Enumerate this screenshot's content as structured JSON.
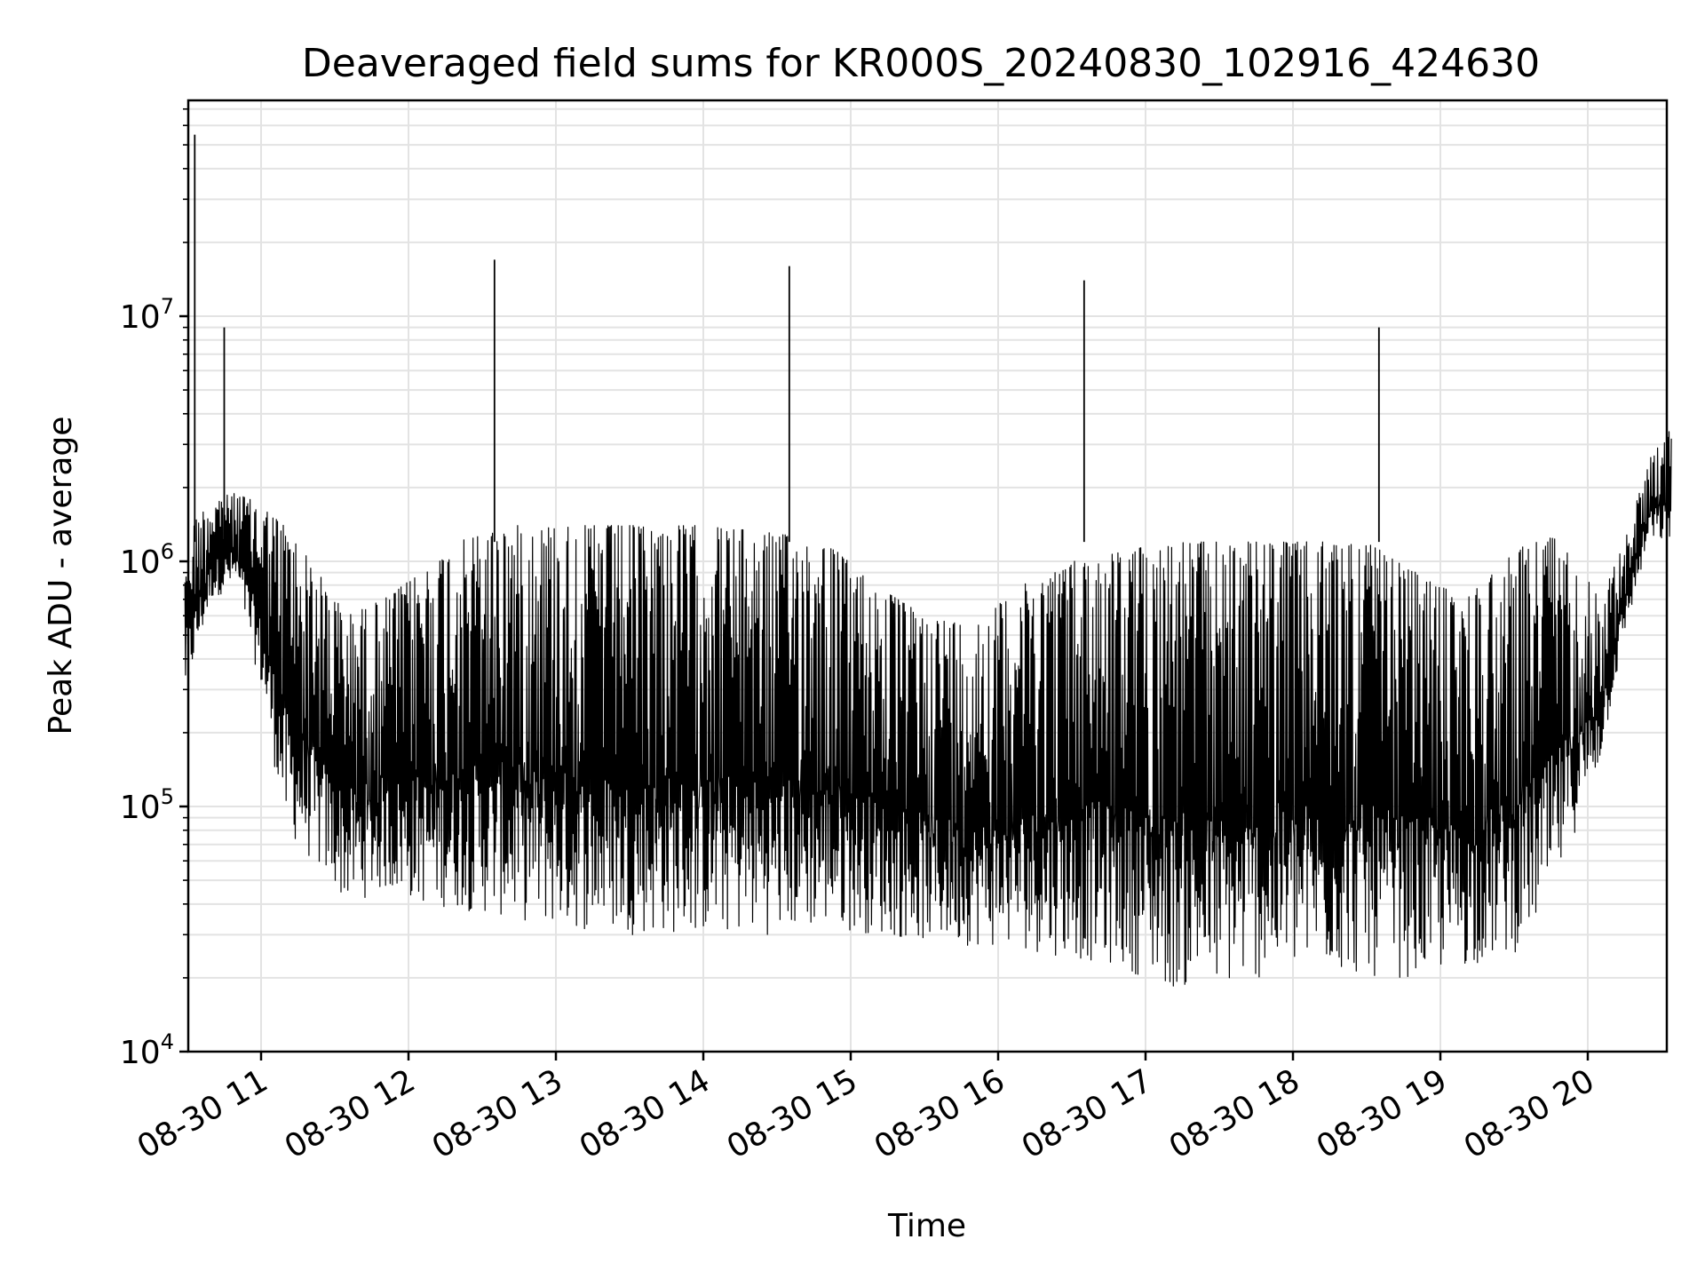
{
  "chart_data": {
    "type": "line",
    "title": "Deaveraged field sums for KR000S_20240830_102916_424630",
    "xlabel": "Time",
    "ylabel": "Peak ADU - average",
    "y_scale": "log",
    "ylim": [
      10000,
      80000000
    ],
    "xlim": [
      "2024-08-30T10:29:16",
      "2024-08-30T20:34:00"
    ],
    "grid": true,
    "x_ticks": [
      {
        "value": "2024-08-30T11:00",
        "label": "08-30 11"
      },
      {
        "value": "2024-08-30T12:00",
        "label": "08-30 12"
      },
      {
        "value": "2024-08-30T13:00",
        "label": "08-30 13"
      },
      {
        "value": "2024-08-30T14:00",
        "label": "08-30 14"
      },
      {
        "value": "2024-08-30T15:00",
        "label": "08-30 15"
      },
      {
        "value": "2024-08-30T16:00",
        "label": "08-30 16"
      },
      {
        "value": "2024-08-30T17:00",
        "label": "08-30 17"
      },
      {
        "value": "2024-08-30T18:00",
        "label": "08-30 18"
      },
      {
        "value": "2024-08-30T19:00",
        "label": "08-30 19"
      },
      {
        "value": "2024-08-30T20:00",
        "label": "08-30 20"
      }
    ],
    "y_ticks": [
      {
        "value": 10000,
        "base": "10",
        "exp": "4"
      },
      {
        "value": 100000,
        "base": "10",
        "exp": "5"
      },
      {
        "value": 1000000,
        "base": "10",
        "exp": "6"
      },
      {
        "value": 10000000,
        "base": "10",
        "exp": "7"
      }
    ],
    "series": [
      {
        "color": "#000000",
        "envelope": [
          {
            "t": "10:29",
            "low": 280000,
            "high": 1300000
          },
          {
            "t": "10:40",
            "low": 700000,
            "high": 1800000
          },
          {
            "t": "10:50",
            "low": 800000,
            "high": 1900000
          },
          {
            "t": "11:00",
            "low": 300000,
            "high": 1700000
          },
          {
            "t": "11:10",
            "low": 80000,
            "high": 1400000
          },
          {
            "t": "11:20",
            "low": 60000,
            "high": 1000000
          },
          {
            "t": "11:35",
            "low": 40000,
            "high": 600000
          },
          {
            "t": "11:50",
            "low": 45000,
            "high": 700000
          },
          {
            "t": "12:05",
            "low": 40000,
            "high": 900000
          },
          {
            "t": "12:20",
            "low": 38000,
            "high": 1200000
          },
          {
            "t": "12:40",
            "low": 35000,
            "high": 1400000
          },
          {
            "t": "13:00",
            "low": 32000,
            "high": 1400000
          },
          {
            "t": "13:30",
            "low": 30000,
            "high": 1400000
          },
          {
            "t": "14:00",
            "low": 30000,
            "high": 1400000
          },
          {
            "t": "14:30",
            "low": 30000,
            "high": 1300000
          },
          {
            "t": "14:50",
            "low": 32000,
            "high": 1200000
          },
          {
            "t": "15:10",
            "low": 30000,
            "high": 800000
          },
          {
            "t": "15:30",
            "low": 28000,
            "high": 600000
          },
          {
            "t": "15:50",
            "low": 27000,
            "high": 550000
          },
          {
            "t": "16:10",
            "low": 26000,
            "high": 800000
          },
          {
            "t": "16:30",
            "low": 24000,
            "high": 1000000
          },
          {
            "t": "16:50",
            "low": 22000,
            "high": 1100000
          },
          {
            "t": "17:10",
            "low": 18000,
            "high": 1200000
          },
          {
            "t": "17:30",
            "low": 18000,
            "high": 1200000
          },
          {
            "t": "17:50",
            "low": 20000,
            "high": 1200000
          },
          {
            "t": "18:10",
            "low": 22000,
            "high": 1200000
          },
          {
            "t": "18:30",
            "low": 20000,
            "high": 1200000
          },
          {
            "t": "18:50",
            "low": 20000,
            "high": 900000
          },
          {
            "t": "19:10",
            "low": 22000,
            "high": 700000
          },
          {
            "t": "19:30",
            "low": 25000,
            "high": 1100000
          },
          {
            "t": "19:45",
            "low": 40000,
            "high": 1300000
          },
          {
            "t": "19:55",
            "low": 80000,
            "high": 1000000
          },
          {
            "t": "20:05",
            "low": 150000,
            "high": 700000
          },
          {
            "t": "20:15",
            "low": 500000,
            "high": 1200000
          },
          {
            "t": "20:25",
            "low": 1200000,
            "high": 2600000
          },
          {
            "t": "20:34",
            "low": 1200000,
            "high": 3500000
          }
        ],
        "spikes": [
          {
            "t": "10:33",
            "value": 55000000
          },
          {
            "t": "10:45",
            "value": 9000000
          },
          {
            "t": "12:35",
            "value": 17000000
          },
          {
            "t": "14:35",
            "value": 16000000
          },
          {
            "t": "16:35",
            "value": 14000000
          },
          {
            "t": "18:35",
            "value": 9000000
          }
        ]
      }
    ]
  }
}
